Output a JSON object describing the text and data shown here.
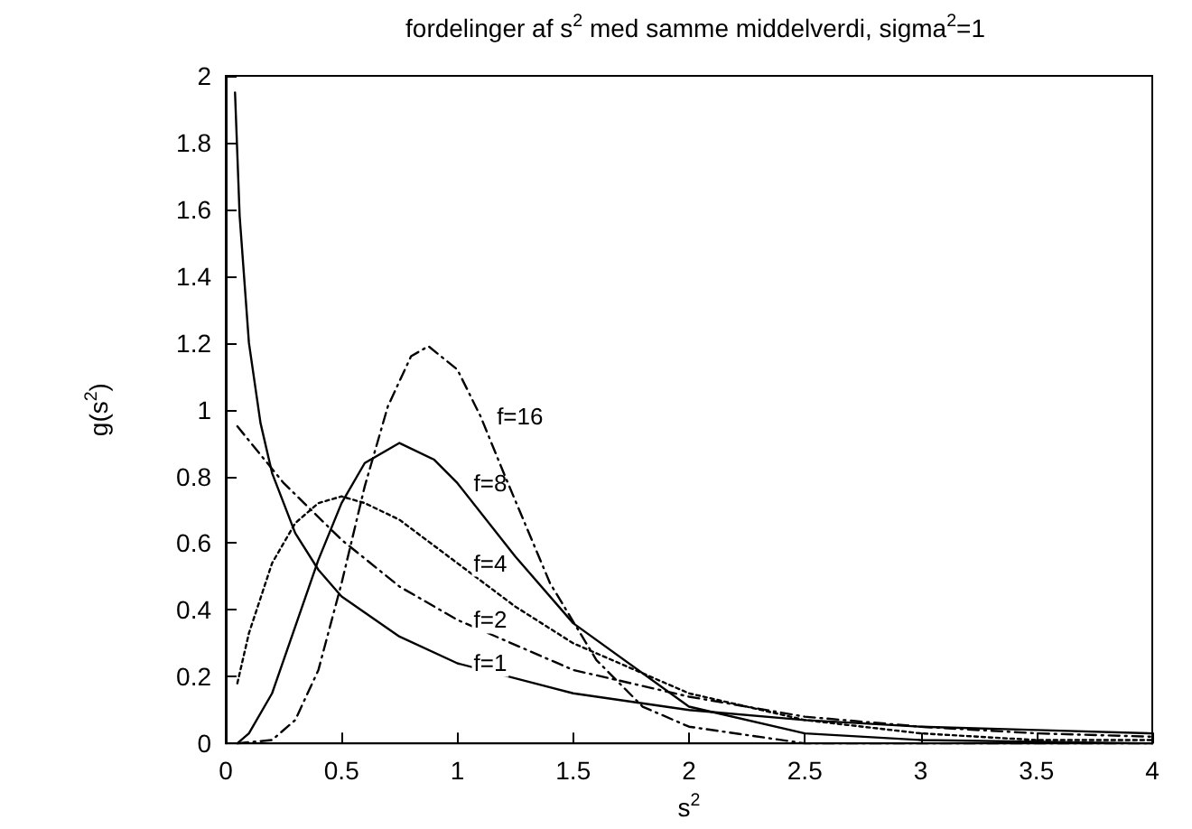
{
  "chart_data": {
    "type": "line",
    "title": "fordelinger af s$^{2}$ med samme middelverdi, sigma$^{2}$=1",
    "xlabel": "s$^{2}$",
    "ylabel": "g(s$^{2}$)",
    "xlim": [
      0,
      4
    ],
    "xticks": [
      0,
      0.5,
      1,
      1.5,
      2,
      2.5,
      3,
      3.5,
      4
    ],
    "ylim": [
      0,
      2
    ],
    "yticks": [
      0,
      0.2,
      0.4,
      0.6,
      0.8,
      1,
      1.2,
      1.4,
      1.6,
      1.8,
      2
    ],
    "grid": false,
    "marker": "none",
    "series": [
      {
        "name": "f=1",
        "color": "#000000",
        "line_style": "solid",
        "x": [
          0.04,
          0.06,
          0.1,
          0.15,
          0.2,
          0.3,
          0.4,
          0.5,
          0.75,
          1,
          1.5,
          2,
          2.5,
          3,
          3.5,
          4
        ],
        "values": [
          1.95,
          1.58,
          1.2,
          0.96,
          0.81,
          0.63,
          0.52,
          0.44,
          0.32,
          0.24,
          0.15,
          0.1,
          0.07,
          0.05,
          0.04,
          0.03
        ]
      },
      {
        "name": "f=2",
        "color": "#000000",
        "line_style": "dashed",
        "x": [
          0.05,
          0.25,
          0.5,
          0.75,
          1,
          1.5,
          2,
          2.5,
          3,
          3.5,
          4
        ],
        "values": [
          0.95,
          0.78,
          0.61,
          0.47,
          0.37,
          0.22,
          0.14,
          0.08,
          0.05,
          0.03,
          0.02
        ]
      },
      {
        "name": "f=4",
        "color": "#000000",
        "line_style": "dotted",
        "x": [
          0.05,
          0.1,
          0.2,
          0.3,
          0.4,
          0.5,
          0.6,
          0.75,
          1,
          1.25,
          1.5,
          2,
          2.5,
          3,
          3.5,
          4
        ],
        "values": [
          0.18,
          0.33,
          0.54,
          0.66,
          0.72,
          0.74,
          0.72,
          0.67,
          0.54,
          0.41,
          0.3,
          0.15,
          0.07,
          0.03,
          0.01,
          0.01
        ]
      },
      {
        "name": "f=8",
        "color": "#000000",
        "line_style": "solid",
        "x": [
          0.05,
          0.1,
          0.2,
          0.3,
          0.4,
          0.5,
          0.6,
          0.75,
          0.9,
          1,
          1.25,
          1.5,
          2,
          2.5,
          3,
          4
        ],
        "values": [
          0,
          0.03,
          0.15,
          0.35,
          0.55,
          0.72,
          0.84,
          0.9,
          0.85,
          0.78,
          0.56,
          0.36,
          0.11,
          0.03,
          0.01,
          0
        ]
      },
      {
        "name": "f=16",
        "color": "#000000",
        "line_style": "dashed",
        "x": [
          0.05,
          0.2,
          0.3,
          0.4,
          0.5,
          0.6,
          0.7,
          0.8,
          0.875,
          1,
          1.1,
          1.2,
          1.4,
          1.6,
          1.8,
          2,
          2.5,
          3,
          4
        ],
        "values": [
          0,
          0.01,
          0.07,
          0.22,
          0.48,
          0.77,
          1.01,
          1.16,
          1.19,
          1.12,
          0.98,
          0.81,
          0.48,
          0.25,
          0.11,
          0.05,
          0,
          0,
          0
        ]
      }
    ]
  }
}
